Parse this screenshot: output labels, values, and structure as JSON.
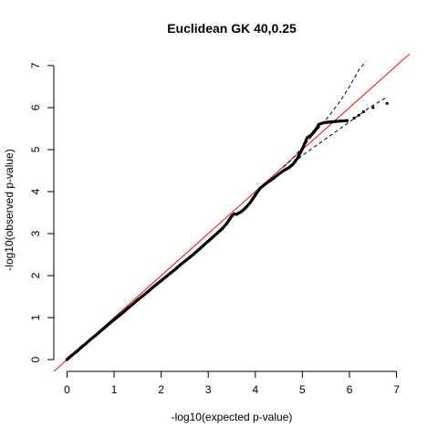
{
  "chart_data": {
    "type": "scatter",
    "title": "Euclidean GK 40,0.25",
    "xlabel": "-log10(expected p-value)",
    "ylabel": "-log10(observed p-value)",
    "xlim": [
      0,
      7
    ],
    "ylim": [
      0,
      7
    ],
    "xticks": [
      "0",
      "1",
      "2",
      "3",
      "4",
      "5",
      "6",
      "7"
    ],
    "yticks": [
      "0",
      "1",
      "2",
      "3",
      "4",
      "5",
      "6",
      "7"
    ],
    "grid": false,
    "legend": "none",
    "colors": {
      "points": "#000000",
      "reference_line": "#ff0000",
      "confidence_band": "#000000"
    },
    "reference_line": {
      "intercept": 0,
      "slope": 1
    },
    "points": [
      [
        0.0,
        0.0
      ],
      [
        0.1,
        0.1
      ],
      [
        0.2,
        0.19
      ],
      [
        0.3,
        0.29
      ],
      [
        0.4,
        0.38
      ],
      [
        0.5,
        0.48
      ],
      [
        0.6,
        0.57
      ],
      [
        0.7,
        0.67
      ],
      [
        0.8,
        0.76
      ],
      [
        0.9,
        0.86
      ],
      [
        1.0,
        0.95
      ],
      [
        1.1,
        1.04
      ],
      [
        1.2,
        1.13
      ],
      [
        1.3,
        1.23
      ],
      [
        1.4,
        1.32
      ],
      [
        1.5,
        1.42
      ],
      [
        1.6,
        1.51
      ],
      [
        1.7,
        1.6
      ],
      [
        1.8,
        1.7
      ],
      [
        1.9,
        1.79
      ],
      [
        2.0,
        1.88
      ],
      [
        2.1,
        1.97
      ],
      [
        2.2,
        2.06
      ],
      [
        2.3,
        2.15
      ],
      [
        2.4,
        2.25
      ],
      [
        2.5,
        2.34
      ],
      [
        2.6,
        2.43
      ],
      [
        2.7,
        2.52
      ],
      [
        2.8,
        2.62
      ],
      [
        2.9,
        2.72
      ],
      [
        3.0,
        2.82
      ],
      [
        3.1,
        2.92
      ],
      [
        3.2,
        3.02
      ],
      [
        3.3,
        3.12
      ],
      [
        3.4,
        3.25
      ],
      [
        3.5,
        3.42
      ],
      [
        3.55,
        3.47
      ],
      [
        3.6,
        3.46
      ],
      [
        3.7,
        3.52
      ],
      [
        3.8,
        3.62
      ],
      [
        3.9,
        3.75
      ],
      [
        4.0,
        3.92
      ],
      [
        4.1,
        4.08
      ],
      [
        4.2,
        4.17
      ],
      [
        4.3,
        4.25
      ],
      [
        4.4,
        4.33
      ],
      [
        4.5,
        4.42
      ],
      [
        4.6,
        4.5
      ],
      [
        4.7,
        4.56
      ],
      [
        4.8,
        4.65
      ],
      [
        4.9,
        4.8
      ],
      [
        5.0,
        5.02
      ],
      [
        5.05,
        5.15
      ],
      [
        5.1,
        5.28
      ],
      [
        5.2,
        5.36
      ],
      [
        5.3,
        5.5
      ],
      [
        5.35,
        5.6
      ],
      [
        5.45,
        5.64
      ],
      [
        5.6,
        5.66
      ],
      [
        5.8,
        5.68
      ],
      [
        5.95,
        5.69
      ],
      [
        6.1,
        5.75
      ],
      [
        6.2,
        5.82
      ],
      [
        6.3,
        5.9
      ],
      [
        6.5,
        6.0
      ],
      [
        6.8,
        6.1
      ]
    ],
    "confidence_upper": [
      [
        4.6,
        4.58
      ],
      [
        4.8,
        4.8
      ],
      [
        5.0,
        5.05
      ],
      [
        5.2,
        5.32
      ],
      [
        5.4,
        5.58
      ],
      [
        5.6,
        5.85
      ],
      [
        5.8,
        6.15
      ],
      [
        6.0,
        6.5
      ],
      [
        6.2,
        6.9
      ],
      [
        6.35,
        7.1
      ]
    ],
    "confidence_lower": [
      [
        4.6,
        4.5
      ],
      [
        4.8,
        4.68
      ],
      [
        5.0,
        4.86
      ],
      [
        5.2,
        5.02
      ],
      [
        5.4,
        5.18
      ],
      [
        5.6,
        5.34
      ],
      [
        5.8,
        5.5
      ],
      [
        6.0,
        5.66
      ],
      [
        6.2,
        5.82
      ],
      [
        6.4,
        5.98
      ],
      [
        6.6,
        6.12
      ],
      [
        6.8,
        6.25
      ]
    ]
  }
}
